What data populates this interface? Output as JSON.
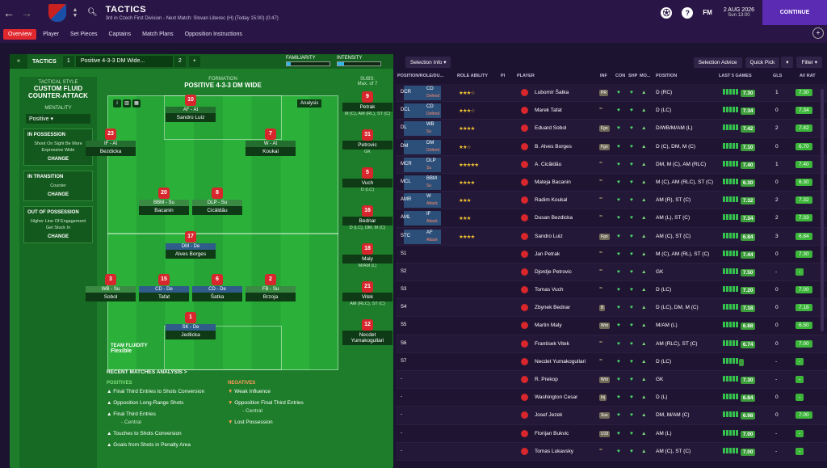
{
  "header": {
    "title": "TACTICS",
    "subtitle": "3rd in Czech First Division - Next Match: Slovan Liberec (H) (Today 15:00) (0:47)",
    "fm": "FM",
    "date": "2 AUG 2026",
    "time": "Sun 13:00",
    "continue": "CONTINUE"
  },
  "menu": [
    "Overview",
    "Player",
    "Set Pieces",
    "Captains",
    "Match Plans",
    "Opposition Instructions"
  ],
  "tactic": {
    "label": "TACTICS",
    "slot1": "1",
    "formation_name": "Positive 4-3-3 DM Wide...",
    "slot2": "2",
    "add": "+",
    "familiarity": "FAMILIARITY",
    "intensity": "INTENSITY",
    "familiarity_level": 0.1,
    "intensity_level": 0.15
  },
  "style": {
    "head": "TACTICAL STYLE",
    "name": "CUSTOM FLUID COUNTER-ATTACK",
    "mentality_h": "MENTALITY",
    "mentality": "Positive",
    "boxes": [
      {
        "head": "IN POSSESSION",
        "text": "Shoot On Sight Be More Expressive Wide",
        "btn": "CHANGE"
      },
      {
        "head": "IN TRANSITION",
        "text": "Counter",
        "btn": "CHANGE"
      },
      {
        "head": "OUT OF POSSESSION",
        "text": "Higher Line Of Engagement Get Stuck In",
        "btn": "CHANGE"
      }
    ]
  },
  "formation": {
    "h": "FORMATION",
    "name": "POSITIVE 4-3-3 DM WIDE",
    "analysis": "Analysis",
    "fluidity_h": "TEAM FLUIDITY",
    "fluidity": "Flexible"
  },
  "players_on_pitch": [
    {
      "num": "10",
      "role": "AF - At",
      "name": "Sandro Luiz",
      "cls": "at"
    },
    {
      "num": "23",
      "role": "IF - At",
      "name": "Bezdicka",
      "cls": "at"
    },
    {
      "num": "7",
      "role": "W - At",
      "name": "Koukal",
      "cls": "at"
    },
    {
      "num": "20",
      "role": "BBM - Su",
      "name": "Bacanin",
      "cls": "su"
    },
    {
      "num": "8",
      "role": "DLP - Su",
      "name": "Cicâldău",
      "cls": "su"
    },
    {
      "num": "17",
      "role": "DM - De",
      "name": "Alves Borges",
      "cls": "de"
    },
    {
      "num": "3",
      "role": "WB - Su",
      "name": "Sobol",
      "cls": "su"
    },
    {
      "num": "15",
      "role": "CD - De",
      "name": "Tafat",
      "cls": "de"
    },
    {
      "num": "6",
      "role": "CD - De",
      "name": "Šatka",
      "cls": "de"
    },
    {
      "num": "2",
      "role": "FB - Su",
      "name": "Brzoja",
      "cls": "su"
    },
    {
      "num": "1",
      "role": "SK - De",
      "name": "Jedlicka",
      "cls": "de"
    }
  ],
  "subs": {
    "h": "SUBS:",
    "max": "Max. of 7",
    "list": [
      {
        "num": "9",
        "name": "Petrak",
        "pos": "M (C), AM (RL), ST (C)"
      },
      {
        "num": "31",
        "name": "Petrovic",
        "pos": "GK"
      },
      {
        "num": "5",
        "name": "Vuch",
        "pos": "D (LC)"
      },
      {
        "num": "16",
        "name": "Bednar",
        "pos": "D (LC), DM, M (C)"
      },
      {
        "num": "18",
        "name": "Maly",
        "pos": "M/AM (L)"
      },
      {
        "num": "21",
        "name": "Vitek",
        "pos": "AM (RLC), ST (C)"
      },
      {
        "num": "12",
        "name": "Necdet Yumakogullari",
        "pos": ""
      }
    ]
  },
  "recent": {
    "h": "RECENT MATCHES ANALYSIS >",
    "pos_h": "POSITIVES",
    "neg_h": "NEGATIVES",
    "positives": [
      "Final Third Entries to Shots Conversion",
      "Opposition Long-Range Shots",
      "Final Third Entries",
      "- Central",
      "Touches to Shots Conversion",
      "Goals from Shots in Penalty Area"
    ],
    "negatives": [
      "Weak Influence",
      "Opposition Final Third Entries",
      "- Central",
      "Lost Possession"
    ]
  },
  "right": {
    "selection": "Selection Info",
    "advice": "Selection Advice",
    "quickpick": "Quick Pick",
    "filter": "Filter",
    "headers": [
      "POSITION/ROLE/DU...",
      "ROLE ABILITY",
      "PI",
      "PLAYER",
      "INF",
      "CON",
      "SHP",
      "MO...",
      "POSITION",
      "LAST 5 GAMES",
      "GLS",
      "AV RAT"
    ],
    "rows": [
      {
        "pos": "DCR",
        "role": "CD",
        "duty": "Defend",
        "stars": "★★★☆",
        "name": "Lubomír Šatka",
        "inf": "PR",
        "position": "D (RC)",
        "rat": "7.30",
        "gls": "1",
        "av": "7.30"
      },
      {
        "pos": "DCL",
        "role": "CD",
        "duty": "Defend",
        "stars": "★★★☆",
        "name": "Marek Tafat",
        "inf": "",
        "position": "D (LC)",
        "rat": "7.34",
        "gls": "0",
        "av": "7.34"
      },
      {
        "pos": "DL",
        "role": "WB",
        "duty": "Su",
        "stars": "★★★★",
        "name": "Eduard Sobol",
        "inf": "Fgn",
        "position": "D/WB/M/AM (L)",
        "rat": "7.42",
        "gls": "2",
        "av": "7.42"
      },
      {
        "pos": "DM",
        "role": "DM",
        "duty": "Defend",
        "stars": "★★☆",
        "name": "B. Alves Borges",
        "inf": "Fgn",
        "position": "D (C), DM, M (C)",
        "rat": "7.10",
        "gls": "0",
        "av": "6.70"
      },
      {
        "pos": "MCR",
        "role": "DLP",
        "duty": "Su",
        "stars": "★★★★★",
        "name": "A. Cicâldău",
        "inf": "",
        "position": "DM, M (C), AM (RLC)",
        "rat": "7.40",
        "gls": "1",
        "av": "7.40"
      },
      {
        "pos": "MCL",
        "role": "BBM",
        "duty": "Su",
        "stars": "★★★★",
        "name": "Mateja Bacanin",
        "inf": "",
        "position": "M (C), AM (RLC), ST (C)",
        "rat": "6.30",
        "gls": "0",
        "av": "6.30"
      },
      {
        "pos": "AMR",
        "role": "W",
        "duty": "Attack",
        "stars": "★★★",
        "name": "Radim Koukal",
        "inf": "",
        "position": "AM (R), ST (C)",
        "rat": "7.32",
        "gls": "2",
        "av": "7.32"
      },
      {
        "pos": "AML",
        "role": "IF",
        "duty": "Attack",
        "stars": "★★★",
        "name": "Dusan Bezdicka",
        "inf": "",
        "position": "AM (L), ST (C)",
        "rat": "7.34",
        "gls": "2",
        "av": "7.33"
      },
      {
        "pos": "STC",
        "role": "AF",
        "duty": "Attack",
        "stars": "★★★★",
        "name": "Sandro Luiz",
        "inf": "Fgn",
        "position": "AM (C), ST (C)",
        "rat": "6.84",
        "gls": "3",
        "av": "6.84"
      },
      {
        "pos": "S1",
        "role": "",
        "duty": "",
        "stars": "",
        "name": "Jan Petrak",
        "inf": "",
        "position": "M (C), AM (RL), ST (C)",
        "rat": "7.44",
        "gls": "0",
        "av": "7.30"
      },
      {
        "pos": "S2",
        "role": "",
        "duty": "",
        "stars": "",
        "name": "Djordje Petrovic",
        "inf": "",
        "position": "GK",
        "rat": "7.50",
        "gls": "-",
        "av": "-"
      },
      {
        "pos": "S3",
        "role": "",
        "duty": "",
        "stars": "",
        "name": "Tomas Vuch",
        "inf": "",
        "position": "D (LC)",
        "rat": "7.20",
        "gls": "0",
        "av": "7.00"
      },
      {
        "pos": "S4",
        "role": "",
        "duty": "",
        "stars": "",
        "name": "Zbynek Bednar",
        "inf": "B",
        "position": "D (LC), DM, M (C)",
        "rat": "7.18",
        "gls": "0",
        "av": "7.18"
      },
      {
        "pos": "S5",
        "role": "",
        "duty": "",
        "stars": "",
        "name": "Martin Maly",
        "inf": "Wnt",
        "position": "M/AM (L)",
        "rat": "6.88",
        "gls": "0",
        "av": "6.50"
      },
      {
        "pos": "S6",
        "role": "",
        "duty": "",
        "stars": "",
        "name": "Frantisek Vitek",
        "inf": "",
        "position": "AM (RLC), ST (C)",
        "rat": "6.74",
        "gls": "0",
        "av": "7.00"
      },
      {
        "pos": "S7",
        "role": "",
        "duty": "",
        "stars": "",
        "name": "Necdet Yumakogullari",
        "inf": "",
        "position": "D (LC)",
        "rat": "",
        "gls": "-",
        "av": "-"
      },
      {
        "pos": "-",
        "role": "",
        "duty": "",
        "stars": "",
        "name": "R. Prekop",
        "inf": "Wnt",
        "position": "GK",
        "rat": "7.30",
        "gls": "-",
        "av": "-"
      },
      {
        "pos": "-",
        "role": "",
        "duty": "",
        "stars": "",
        "name": "Washington Cesar",
        "inf": "Inj",
        "position": "D (L)",
        "rat": "6.84",
        "gls": "0",
        "av": "-"
      },
      {
        "pos": "-",
        "role": "",
        "duty": "",
        "stars": "",
        "name": "Josef Jezek",
        "inf": "Sus",
        "position": "DM, M/AM (C)",
        "rat": "6.98",
        "gls": "0",
        "av": "7.00"
      },
      {
        "pos": "-",
        "role": "",
        "duty": "",
        "stars": "",
        "name": "Florijan Bukvic",
        "inf": "U19",
        "position": "AM (L)",
        "rat": "7.00",
        "gls": "-",
        "av": "-"
      },
      {
        "pos": "-",
        "role": "",
        "duty": "",
        "stars": "",
        "name": "Tomas Lukavsky",
        "inf": "",
        "position": "AM (C), ST (C)",
        "rat": "7.00",
        "gls": "-",
        "av": "-"
      }
    ]
  }
}
